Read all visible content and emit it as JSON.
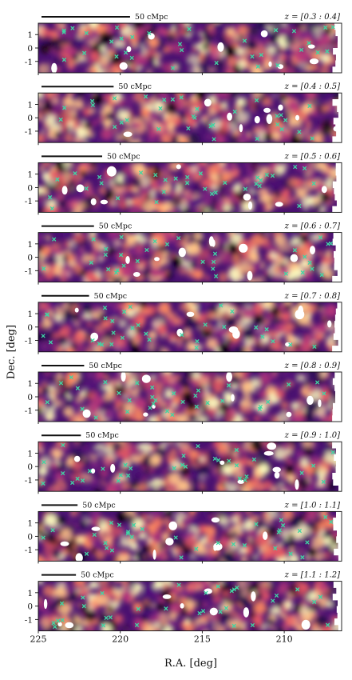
{
  "chart_data": {
    "type": "heatmap",
    "xlabel": "R.A. [deg]",
    "ylabel": "Dec. [deg]",
    "xlim": [
      225,
      206.5
    ],
    "ylim": [
      -1.85,
      1.85
    ],
    "x_ticks": [
      225,
      220,
      215,
      210
    ],
    "y_ticks": [
      1,
      0,
      -1
    ],
    "colormap": "magma",
    "marker_color": "#3fd6a4",
    "mask_color": "#ffffff",
    "panels": [
      {
        "redshift_label": "z = [0.3 : 0.4]",
        "scale_bar": "50 cMpc",
        "scale_bar_deg": 5.4
      },
      {
        "redshift_label": "z = [0.4 : 0.5]",
        "scale_bar": "50 cMpc",
        "scale_bar_deg": 4.4
      },
      {
        "redshift_label": "z = [0.5 : 0.6]",
        "scale_bar": "50 cMpc",
        "scale_bar_deg": 3.7
      },
      {
        "redshift_label": "z = [0.6 : 0.7]",
        "scale_bar": "50 cMpc",
        "scale_bar_deg": 3.2
      },
      {
        "redshift_label": "z = [0.7 : 0.8]",
        "scale_bar": "50 cMpc",
        "scale_bar_deg": 2.9
      },
      {
        "redshift_label": "z = [0.8 : 0.9]",
        "scale_bar": "50 cMpc",
        "scale_bar_deg": 2.6
      },
      {
        "redshift_label": "z = [0.9 : 1.0]",
        "scale_bar": "50 cMpc",
        "scale_bar_deg": 2.4
      },
      {
        "redshift_label": "z = [1.0 : 1.1]",
        "scale_bar": "50 cMpc",
        "scale_bar_deg": 2.2
      },
      {
        "redshift_label": "z = [1.1 : 1.2]",
        "scale_bar": "50 cMpc",
        "scale_bar_deg": 2.1
      }
    ]
  }
}
